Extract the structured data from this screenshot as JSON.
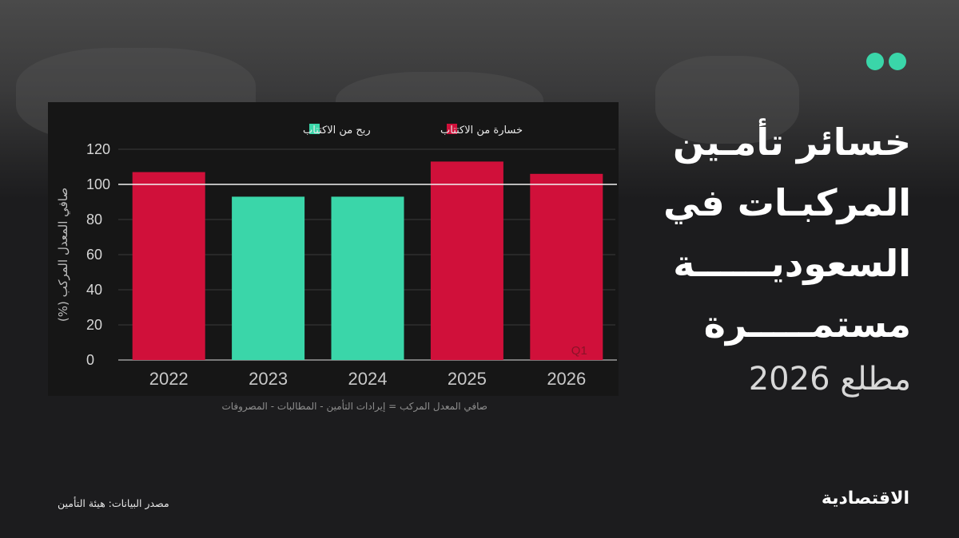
{
  "title_lines": [
    "خسائر تأمـين",
    "المركبـات في",
    "السعوديــــــة",
    "مستمـــــرة"
  ],
  "subtitle": "مطلع 2026",
  "footnote": "صافي المعدل المركب = إيرادات التأمين - المطالبات - المصروفات",
  "source": "مصدر البيانات: هيئة التأمين",
  "logo": "الاقتصادية",
  "colors": {
    "loss": "#d0103a",
    "profit": "#3ad6a9",
    "accent_dots": "#3ad6a9",
    "background": "#1c1c1e",
    "panel": "#161616"
  },
  "chart_data": {
    "type": "bar",
    "categories": [
      "2022",
      "2023",
      "2024",
      "2025",
      "2026"
    ],
    "values": [
      107,
      93,
      93,
      113,
      106
    ],
    "bar_status": [
      "loss",
      "profit",
      "profit",
      "loss",
      "loss"
    ],
    "ylabel": "صافي المعدل المركب (%)",
    "yticks": [
      0,
      20,
      40,
      60,
      80,
      100,
      120
    ],
    "ylim": [
      0,
      120
    ],
    "reference_line": 100,
    "annotations": [
      {
        "category": "2026",
        "text": "Q1"
      }
    ],
    "legend": [
      {
        "key": "loss",
        "label": "خسارة من الاكتتاب"
      },
      {
        "key": "profit",
        "label": "ربح من الاكتتاب"
      }
    ],
    "legend_position": "top",
    "grid": true
  }
}
